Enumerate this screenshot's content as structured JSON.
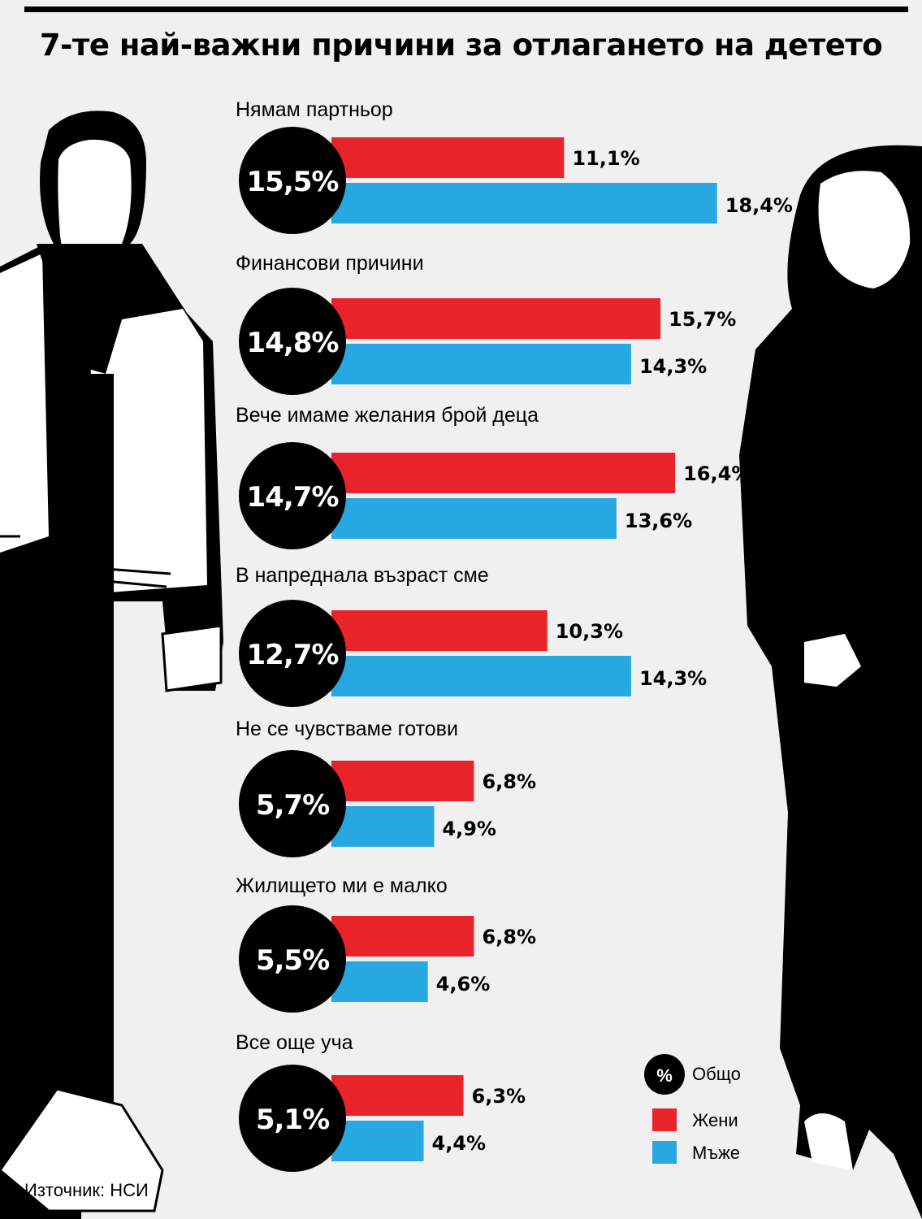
{
  "title": "7-те най-важни причини за отлагането на детето",
  "source": "Източник: НСИ",
  "colors": {
    "women": "#e8232a",
    "men": "#27a8e0",
    "total": "#000000",
    "background": "#f0f0f1"
  },
  "legend": {
    "total_symbol": "%",
    "total": "Общо",
    "women": "Жени",
    "men": "Мъже"
  },
  "chart_data": {
    "type": "bar",
    "orientation": "horizontal",
    "title": "7-те най-важни причини за отлагането на детето",
    "value_suffix": "%",
    "categories": [
      "Нямам партньор",
      "Финансови причини",
      "Вече имаме желания брой деца",
      "В напреднала възраст сме",
      "Не се чувстваме готови",
      "Жилището ми е малко",
      "Все още уча"
    ],
    "series": [
      {
        "name": "Общо",
        "values": [
          15.5,
          14.8,
          14.7,
          12.7,
          5.7,
          5.5,
          5.1
        ]
      },
      {
        "name": "Жени",
        "values": [
          11.1,
          15.7,
          16.4,
          10.3,
          6.8,
          6.8,
          6.3
        ]
      },
      {
        "name": "Мъже",
        "values": [
          18.4,
          14.3,
          13.6,
          14.3,
          4.9,
          4.6,
          4.4
        ]
      }
    ],
    "legend_position": "bottom-right"
  }
}
